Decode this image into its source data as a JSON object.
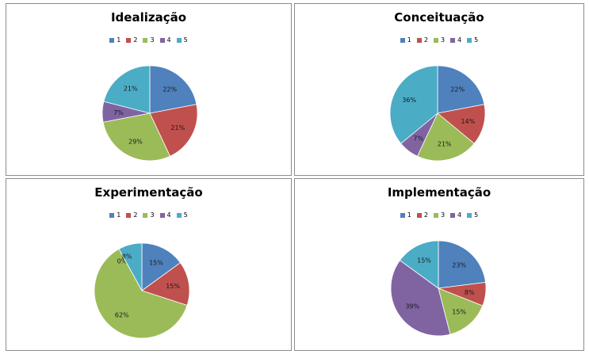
{
  "chart_data": [
    {
      "type": "pie",
      "title": "Idealização",
      "categories": [
        "1",
        "2",
        "3",
        "4",
        "5"
      ],
      "values": [
        22,
        21,
        29,
        7,
        21
      ],
      "labels": [
        "22%",
        "21%",
        "29%",
        "7%",
        "21%"
      ],
      "legend_position": "top"
    },
    {
      "type": "pie",
      "title": "Conceituação",
      "categories": [
        "1",
        "2",
        "3",
        "4",
        "5"
      ],
      "values": [
        22,
        14,
        21,
        7,
        36
      ],
      "labels": [
        "22%",
        "14%",
        "21%",
        "7%",
        "36%"
      ],
      "legend_position": "top"
    },
    {
      "type": "pie",
      "title": "Experimentação",
      "categories": [
        "1",
        "2",
        "3",
        "4",
        "5"
      ],
      "values": [
        15,
        15,
        62,
        0,
        8
      ],
      "labels": [
        "15%",
        "15%",
        "62%",
        "0%",
        "8%"
      ],
      "legend_position": "top"
    },
    {
      "type": "pie",
      "title": "Implementação",
      "categories": [
        "1",
        "2",
        "3",
        "4",
        "5"
      ],
      "values": [
        23,
        8,
        15,
        39,
        15
      ],
      "labels": [
        "23%",
        "8%",
        "15%",
        "39%",
        "15%"
      ],
      "legend_position": "top"
    }
  ],
  "colors": [
    "#4f81bd",
    "#c0504d",
    "#9bbb59",
    "#8064a2",
    "#4bacc6"
  ]
}
